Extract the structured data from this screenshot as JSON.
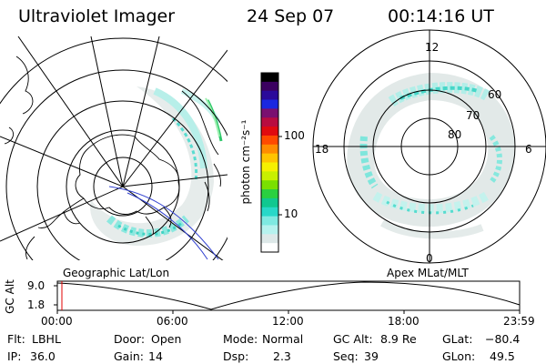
{
  "header": {
    "instrument": "Ultraviolet Imager",
    "date": "24 Sep 07",
    "time": "00:14:16 UT"
  },
  "colorbar": {
    "unit": "photon cm⁻²s⁻¹",
    "ticks": [
      "100",
      "10"
    ],
    "colors": [
      "#000000",
      "#3b0060",
      "#2a0a9a",
      "#1a28e0",
      "#7a1070",
      "#b80c40",
      "#e00a10",
      "#ff4a00",
      "#ff8c00",
      "#ffc400",
      "#f6f000",
      "#c8f000",
      "#7ae000",
      "#2ad040",
      "#10c890",
      "#28d8c8",
      "#7fe9e1",
      "#b6f2ee",
      "#dde8e8",
      "#ffffff"
    ]
  },
  "left_map": {
    "label": "Geographic Lat/Lon"
  },
  "right_map": {
    "label": "Apex MLat/MLT",
    "mlt_labels": {
      "top": "12",
      "bottom": "0",
      "left": "18",
      "right": "6"
    },
    "lat_labels": [
      "60",
      "70",
      "80"
    ]
  },
  "timeline": {
    "ylabel": "GC Alt",
    "yticks": [
      "9.0",
      "1.8"
    ],
    "xticks": [
      "00:00",
      "06:00",
      "12:00",
      "18:00",
      "23:59"
    ],
    "marker_time": "00:14:16"
  },
  "status": {
    "filter_label": "Flt:",
    "filter_value": "LBHL",
    "ip_label": "IP:",
    "ip_value": "36.0",
    "door_label": "Door:",
    "door_value": "Open",
    "gain_label": "Gain:",
    "gain_value": "14",
    "mode_label": "Mode:",
    "mode_value": "Normal",
    "dsp_label": "Dsp:",
    "dsp_value": "2.3",
    "gcalt_label": "GC Alt:",
    "gcalt_value": "8.9 Re",
    "seq_label": "Seq:",
    "seq_value": "39",
    "glat_label": "GLat:",
    "glat_value": "−80.4",
    "glon_label": "GLon:",
    "glon_value": "49.5"
  }
}
